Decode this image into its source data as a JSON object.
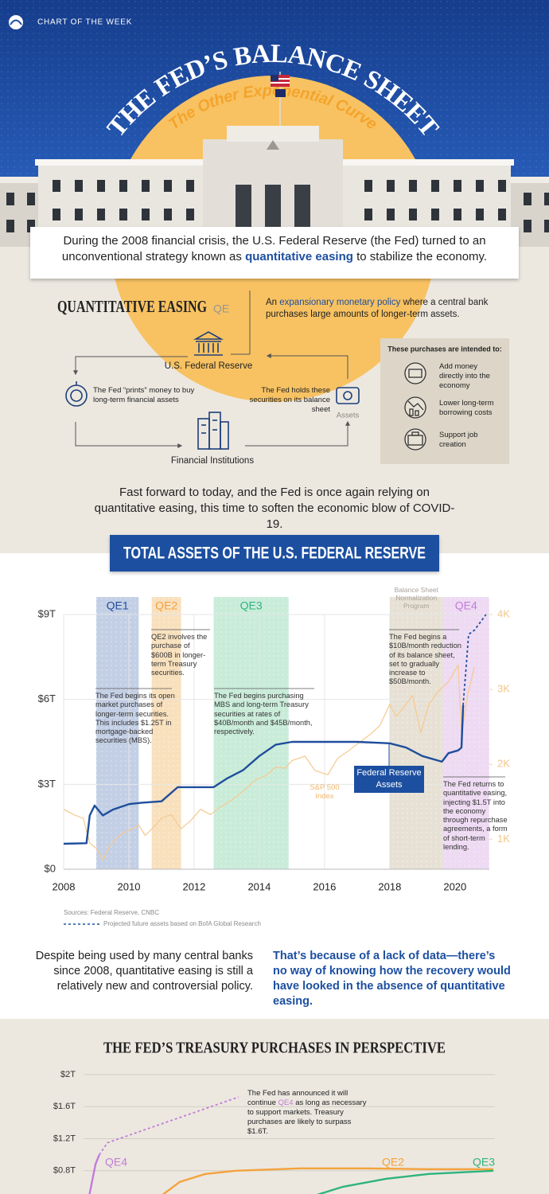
{
  "header": {
    "brand": "CHART OF THE WEEK",
    "title": "THE FED’S BALANCE SHEET",
    "subtitle": "The Other Exponential Curve"
  },
  "intro": [
    "During the 2008 financial crisis, the U.S. Federal Reserve (the Fed) turned to an unconventional strategy known as ",
    "quantitative easing",
    " to stabilize the economy."
  ],
  "qe": {
    "heading": "QUANTITATIVE EASING",
    "abbr": "QE",
    "definition": [
      "An ",
      "expansionary monetary policy",
      " where a central bank purchases large amounts of longer-term assets."
    ],
    "nodes": [
      "U.S. Federal Reserve",
      "Financial Institutions",
      "Assets"
    ],
    "steps": [
      "The Fed “prints” money to buy long-term financial assets",
      "The Fed holds these securities on its balance sheet"
    ],
    "purposes": {
      "title": "These purchases are intended to:",
      "items": [
        "Add money directly into the economy",
        "Lower long-term borrowing costs",
        "Support job creation"
      ]
    }
  },
  "transition": "Fast forward to today, and the Fed is once again relying on quantitative easing, this time to soften the economic blow of COVID-19.",
  "chart_data": [
    {
      "type": "line",
      "title": "TOTAL ASSETS OF THE U.S. FEDERAL RESERVE",
      "xlim": [
        2008,
        2021.2
      ],
      "xticks": [
        2008,
        2010,
        2012,
        2014,
        2016,
        2018,
        2020
      ],
      "ylim": [
        0,
        9
      ],
      "yticks": [
        {
          "value": 0,
          "label": "$0"
        },
        {
          "value": 3,
          "label": "$3T"
        },
        {
          "value": 6,
          "label": "$6T"
        },
        {
          "value": 9,
          "label": "$9T"
        }
      ],
      "y2lim": [
        600,
        4000
      ],
      "y2ticks": [
        {
          "value": 1000,
          "label": "1K"
        },
        {
          "value": 2000,
          "label": "2K"
        },
        {
          "value": 3000,
          "label": "3K"
        },
        {
          "value": 4000,
          "label": "4K"
        }
      ],
      "grid": true,
      "periods": [
        {
          "label": "QE1",
          "start": 2009,
          "end": 2010.3,
          "color": "#c3cfe5",
          "label_color": "#1f4e9c"
        },
        {
          "label": "QE2",
          "start": 2010.7,
          "end": 2011.6,
          "color": "#f8e0bd",
          "label_color": "#f4a23c"
        },
        {
          "label": "QE3",
          "start": 2012.6,
          "end": 2014.9,
          "color": "#c9ecd9",
          "label_color": "#2fb37c"
        },
        {
          "label": "Balance Sheet Normalization Program",
          "start": 2018,
          "end": 2019.63,
          "color": "#e7e1d5",
          "label_color": "#a9a39a"
        },
        {
          "label": "QE4",
          "start": 2019.63,
          "end": 2021.05,
          "color": "#eedaf3",
          "label_color": "#c37bd8"
        }
      ],
      "series": [
        {
          "name": "Federal Reserve Assets",
          "color": "#1f4e9c",
          "x": [
            2008,
            2008.7,
            2008.8,
            2008.95,
            2009.2,
            2009.5,
            2010,
            2010.4,
            2011,
            2011.5,
            2012,
            2012.6,
            2013,
            2013.5,
            2014,
            2014.5,
            2015,
            2016,
            2017,
            2018,
            2018.5,
            2019,
            2019.6,
            2019.8,
            2020.1,
            2020.2,
            2020.25
          ],
          "values": [
            0.9,
            0.92,
            1.9,
            2.25,
            1.9,
            2.1,
            2.3,
            2.35,
            2.4,
            2.9,
            2.9,
            2.9,
            3.2,
            3.5,
            4.0,
            4.4,
            4.5,
            4.5,
            4.5,
            4.45,
            4.3,
            4.0,
            3.8,
            4.1,
            4.2,
            4.3,
            5.8
          ]
        },
        {
          "name": "Projected future assets based on BofA Global Research",
          "color": "#1f4e9c",
          "dashed": true,
          "x": [
            2020.25,
            2020.42,
            2020.6,
            2020.95
          ],
          "values": [
            5.8,
            8.3,
            8.45,
            9.0
          ]
        },
        {
          "name": "S&P 500 Index",
          "color": "#f6c98f",
          "axis": "y2",
          "x": [
            2008,
            2008.3,
            2008.6,
            2008.8,
            2009,
            2009.2,
            2009.4,
            2009.7,
            2010,
            2010.3,
            2010.5,
            2010.8,
            2011,
            2011.3,
            2011.6,
            2011.9,
            2012.2,
            2012.5,
            2012.8,
            2013,
            2013.3,
            2013.6,
            2013.9,
            2014.2,
            2014.5,
            2014.8,
            2015,
            2015.4,
            2015.7,
            2016.1,
            2016.4,
            2016.7,
            2017,
            2017.4,
            2017.7,
            2018,
            2018.2,
            2018.5,
            2018.7,
            2018.95,
            2019.2,
            2019.5,
            2019.8,
            2020.1,
            2020.2,
            2020.4,
            2020.6
          ],
          "values": [
            1400,
            1330,
            1280,
            950,
            880,
            720,
            900,
            1050,
            1120,
            1190,
            1050,
            1180,
            1280,
            1330,
            1140,
            1250,
            1400,
            1330,
            1430,
            1480,
            1570,
            1680,
            1800,
            1850,
            1960,
            1950,
            2050,
            2110,
            1920,
            1860,
            2080,
            2170,
            2270,
            2400,
            2520,
            2800,
            2640,
            2800,
            2920,
            2420,
            2800,
            2980,
            3100,
            3330,
            2400,
            2950,
            3300
          ]
        }
      ],
      "annotations": [
        "QE2 involves the purchase of $600B in longer-term Treasury securities.",
        "The Fed begins its open market purchases of longer-term securities. This includes $1.25T in mortgage-backed securities (MBS).",
        "The Fed begins purchasing MBS and long-term Treasury securities at rates of $40B/month and $45B/month, respectively.",
        "The Fed begins a $10B/month reduction of its balance sheet, set to gradually increase to $50B/month.",
        "The Fed returns to quantitative easing, injecting $1.5T into the economy through repurchase agreements, a form of short-term lending."
      ],
      "source": "Sources: Federal Reserve, CNBC"
    },
    {
      "type": "line",
      "title": "THE FED’S TREASURY PURCHASES IN PERSPECTIVE",
      "xlim": [
        0,
        100
      ],
      "ylim": [
        0.5,
        2
      ],
      "yticks": [
        {
          "value": 0.8,
          "label": "$0.8T"
        },
        {
          "value": 1.2,
          "label": "$1.2T"
        },
        {
          "value": 1.6,
          "label": "$1.6T"
        },
        {
          "value": 2,
          "label": "$2T"
        }
      ],
      "grid": true,
      "series": [
        {
          "name": "QE4",
          "color": "#c37bd8",
          "x": [
            6,
            7.4,
            8.3
          ],
          "values": [
            0.5,
            0.88,
            1.0
          ]
        },
        {
          "color": "#c37bd8",
          "dashed": true,
          "x": [
            8.3,
            10.2,
            40.7
          ],
          "values": [
            1.0,
            1.15,
            1.72
          ]
        },
        {
          "name": "QE2",
          "color": "#f4a23c",
          "x": [
            23,
            27,
            33,
            40,
            55,
            70,
            85,
            100
          ],
          "values": [
            0.5,
            0.66,
            0.76,
            0.8,
            0.83,
            0.83,
            0.82,
            0.82
          ]
        },
        {
          "name": "QE3",
          "color": "#2fb37c",
          "x": [
            59,
            65,
            75,
            85,
            100
          ],
          "values": [
            0.5,
            0.6,
            0.7,
            0.76,
            0.8
          ]
        }
      ],
      "annotation": [
        "The Fed has announced it will continue ",
        "QE4",
        " as long as necessary to support markets. Treasury purchases are likely to surpass $1.6T."
      ]
    }
  ],
  "conclusion": {
    "left": "Despite being used by many central banks since 2008, quantitative easing is still a relatively new and controversial policy.",
    "right": "That’s because of a lack of data—there’s no way of knowing how the recovery would have looked in the absence of quantitative easing."
  }
}
